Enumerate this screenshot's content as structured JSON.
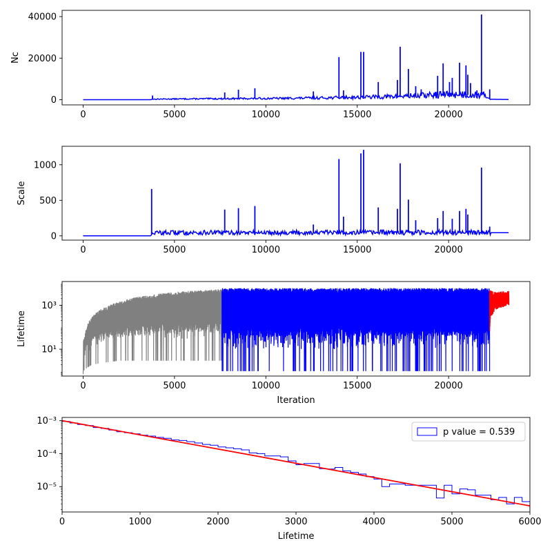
{
  "chart_data": [
    {
      "type": "line",
      "title": "",
      "xlabel": "",
      "ylabel": "Nc",
      "xlim": [
        -1150,
        24450
      ],
      "ylim": [
        -2500,
        43000
      ],
      "xticks": [
        0,
        5000,
        10000,
        15000,
        20000
      ],
      "xtick_labels": [
        "0",
        "5000",
        "10000",
        "15000",
        "20000"
      ],
      "yticks": [
        0,
        20000,
        40000
      ],
      "ytick_labels": [
        "0",
        "20000",
        "40000"
      ],
      "grid": false,
      "series": [
        {
          "color": "#0000ff",
          "baseline": [
            [
              0,
              0
            ],
            [
              3700,
              0
            ],
            [
              3800,
              250
            ],
            [
              7600,
              450
            ],
            [
              9000,
              500
            ],
            [
              11000,
              600
            ],
            [
              13000,
              800
            ],
            [
              14500,
              1000
            ],
            [
              16000,
              1200
            ],
            [
              17500,
              1500
            ],
            [
              19000,
              2000
            ],
            [
              20500,
              2400
            ],
            [
              22000,
              2000
            ],
            [
              22300,
              200
            ],
            [
              23300,
              100
            ]
          ],
          "spikes": [
            [
              3800,
              2000
            ],
            [
              7750,
              3500
            ],
            [
              8500,
              4800
            ],
            [
              9400,
              5500
            ],
            [
              12600,
              4000
            ],
            [
              14000,
              20500
            ],
            [
              14250,
              4500
            ],
            [
              15200,
              23000
            ],
            [
              15350,
              23000
            ],
            [
              16150,
              8500
            ],
            [
              17200,
              9500
            ],
            [
              17350,
              25500
            ],
            [
              17800,
              14800
            ],
            [
              18200,
              6500
            ],
            [
              18500,
              5000
            ],
            [
              19400,
              11500
            ],
            [
              19700,
              17500
            ],
            [
              20050,
              8500
            ],
            [
              20200,
              10500
            ],
            [
              20600,
              17800
            ],
            [
              20950,
              16500
            ],
            [
              21050,
              12000
            ],
            [
              21200,
              8000
            ],
            [
              21550,
              4500
            ],
            [
              21800,
              41000
            ],
            [
              22250,
              5000
            ]
          ]
        }
      ]
    },
    {
      "type": "line",
      "title": "",
      "xlabel": "",
      "ylabel": "Scale",
      "xlim": [
        -1150,
        24450
      ],
      "ylim": [
        -60,
        1260
      ],
      "xticks": [
        0,
        5000,
        10000,
        15000,
        20000
      ],
      "xtick_labels": [
        "0",
        "5000",
        "10000",
        "15000",
        "20000"
      ],
      "yticks": [
        0,
        500,
        1000
      ],
      "ytick_labels": [
        "0",
        "500",
        "1000"
      ],
      "grid": false,
      "series": [
        {
          "color": "#0000ff",
          "baseline": [
            [
              0,
              0
            ],
            [
              3700,
              0
            ],
            [
              3800,
              40
            ],
            [
              23300,
              45
            ]
          ],
          "spikes": [
            [
              3750,
              660
            ],
            [
              7750,
              370
            ],
            [
              8500,
              390
            ],
            [
              9400,
              420
            ],
            [
              12600,
              160
            ],
            [
              14000,
              1080
            ],
            [
              14250,
              270
            ],
            [
              15200,
              1160
            ],
            [
              15350,
              1210
            ],
            [
              16150,
              400
            ],
            [
              17200,
              380
            ],
            [
              17350,
              1020
            ],
            [
              17800,
              510
            ],
            [
              18200,
              220
            ],
            [
              19400,
              250
            ],
            [
              19700,
              350
            ],
            [
              20200,
              240
            ],
            [
              20600,
              350
            ],
            [
              20950,
              380
            ],
            [
              21050,
              300
            ],
            [
              21800,
              960
            ],
            [
              22250,
              130
            ]
          ]
        }
      ]
    },
    {
      "type": "line",
      "title": "",
      "xlabel": "Iteration",
      "ylabel": "Lifetime",
      "yscale": "log",
      "xlim": [
        -1150,
        24450
      ],
      "ylim": [
        0.6,
        12000
      ],
      "xticks": [
        0,
        5000,
        10000,
        15000,
        20000
      ],
      "xtick_labels": [
        "0",
        "5000",
        "10000",
        "15000",
        "20000"
      ],
      "yticks": [
        10,
        1000
      ],
      "ytick_labels": [
        "10¹",
        "10³"
      ],
      "grid": false,
      "series": [
        {
          "color": "#808080",
          "x_range": [
            0,
            7600
          ],
          "envelope_top": [
            [
              0,
              1
            ],
            [
              100,
              40
            ],
            [
              500,
              300
            ],
            [
              1000,
              700
            ],
            [
              2000,
              1500
            ],
            [
              3000,
              2400
            ],
            [
              4000,
              3200
            ],
            [
              5000,
              4000
            ],
            [
              6000,
              4600
            ],
            [
              7000,
              5100
            ],
            [
              7600,
              5500
            ]
          ],
          "envelope_bottom": [
            [
              0,
              1
            ],
            [
              500,
              2
            ],
            [
              2000,
              3
            ],
            [
              4000,
              3
            ],
            [
              7600,
              3
            ]
          ]
        },
        {
          "color": "#0000ff",
          "x_range": [
            7600,
            22250
          ],
          "envelope_top": [
            [
              7600,
              6000
            ],
            [
              22250,
              6000
            ]
          ],
          "envelope_bottom": [
            [
              7600,
              1
            ],
            [
              22250,
              1
            ]
          ]
        },
        {
          "color": "#ff0000",
          "x_range": [
            22250,
            23300
          ],
          "envelope_top": [
            [
              22250,
              5000
            ],
            [
              22500,
              4000
            ],
            [
              23300,
              4500
            ]
          ],
          "envelope_bottom": [
            [
              22250,
              50
            ],
            [
              22300,
              300
            ],
            [
              22600,
              800
            ],
            [
              23300,
              1200
            ]
          ]
        }
      ]
    },
    {
      "type": "histogram",
      "title": "",
      "xlabel": "Lifetime",
      "ylabel": "",
      "yscale": "log",
      "xlim": [
        0,
        6000
      ],
      "ylim": [
        1.7e-06,
        0.00125
      ],
      "xticks": [
        0,
        1000,
        2000,
        3000,
        4000,
        5000,
        6000
      ],
      "xtick_labels": [
        "0",
        "1000",
        "2000",
        "3000",
        "4000",
        "5000",
        "6000"
      ],
      "yticks": [
        1e-05,
        0.0001,
        0.001
      ],
      "ytick_labels": [
        "10⁻⁵",
        "10⁻⁴",
        "10⁻³"
      ],
      "grid": false,
      "legend": {
        "position": "top-right",
        "entries": [
          {
            "label": "p value = 0.539",
            "color": "#0000ff",
            "style": "hollow-box"
          }
        ]
      },
      "histogram": {
        "color": "#0000ff",
        "bin_edges": [
          0,
          100,
          200,
          300,
          400,
          500,
          600,
          700,
          800,
          900,
          1000,
          1100,
          1200,
          1300,
          1400,
          1500,
          1600,
          1700,
          1800,
          1900,
          2000,
          2100,
          2200,
          2300,
          2400,
          2500,
          2600,
          2700,
          2800,
          2900,
          3000,
          3100,
          3200,
          3300,
          3400,
          3500,
          3600,
          3700,
          3800,
          3900,
          4000,
          4100,
          4200,
          4300,
          4400,
          4500,
          4600,
          4700,
          4800,
          4900,
          5000,
          5100,
          5200,
          5300,
          5400,
          5500,
          5600,
          5700,
          5800,
          5900,
          6000
        ],
        "density": [
          0.00095,
          0.00085,
          0.00076,
          0.00071,
          0.00062,
          0.00058,
          0.00052,
          0.00046,
          0.00043,
          0.0004,
          0.00036,
          0.00034,
          0.00031,
          0.00029,
          0.00026,
          0.00025,
          0.00023,
          0.00021,
          0.00019,
          0.00018,
          0.00016,
          0.00015,
          0.00014,
          0.00013,
          0.000105,
          0.0001,
          8.5e-05,
          8.5e-05,
          8e-05,
          6e-05,
          4.6e-05,
          5e-05,
          5e-05,
          3.5e-05,
          3.4e-05,
          3.8e-05,
          3e-05,
          2.7e-05,
          2.4e-05,
          2e-05,
          1.7e-05,
          1e-05,
          1.2e-05,
          1.2e-05,
          1.1e-05,
          1.1e-05,
          1.1e-05,
          1.1e-05,
          4.5e-06,
          1.1e-05,
          6e-06,
          8.5e-06,
          8e-06,
          5.5e-06,
          5.5e-06,
          4e-06,
          4.7e-06,
          3e-06,
          4.7e-06,
          3.5e-06
        ]
      },
      "fit_line": {
        "color": "#ff0000",
        "points": [
          [
            0,
            0.001
          ],
          [
            6000,
            2.6e-06
          ]
        ]
      }
    }
  ]
}
